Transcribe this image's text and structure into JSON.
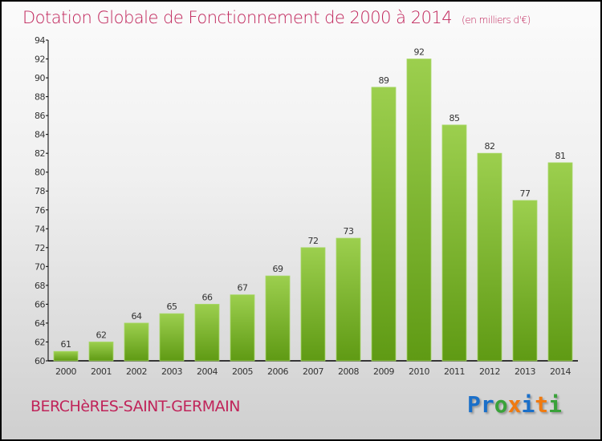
{
  "header": {
    "title": "Dotation Globale de Fonctionnement de 2000 à 2014",
    "unit": "(en milliers d'€)"
  },
  "footer": {
    "commune": "BERCHèRES-SAINT-GERMAIN",
    "logo": "Proxiti"
  },
  "colors": {
    "title": "#c0245a",
    "bar_top": "#9ccf4e",
    "bar_bottom": "#5f9a14",
    "logo": [
      "#1a6fc9",
      "#1a6fc9",
      "#3aa23a",
      "#f07a10",
      "#1a6fc9",
      "#f07a10",
      "#3aa23a"
    ]
  },
  "chart_data": {
    "type": "bar",
    "title": "Dotation Globale de Fonctionnement de 2000 à 2014",
    "xlabel": "",
    "ylabel": "",
    "categories": [
      "2000",
      "2001",
      "2002",
      "2003",
      "2004",
      "2005",
      "2006",
      "2007",
      "2008",
      "2009",
      "2010",
      "2011",
      "2012",
      "2013",
      "2014"
    ],
    "values": [
      61,
      62,
      64,
      65,
      66,
      67,
      69,
      72,
      73,
      89,
      92,
      85,
      82,
      77,
      81
    ],
    "ylim": [
      60,
      94
    ],
    "yticks": [
      60,
      62,
      64,
      66,
      68,
      70,
      72,
      74,
      76,
      78,
      80,
      82,
      84,
      86,
      88,
      90,
      92,
      94
    ],
    "grid": false
  }
}
